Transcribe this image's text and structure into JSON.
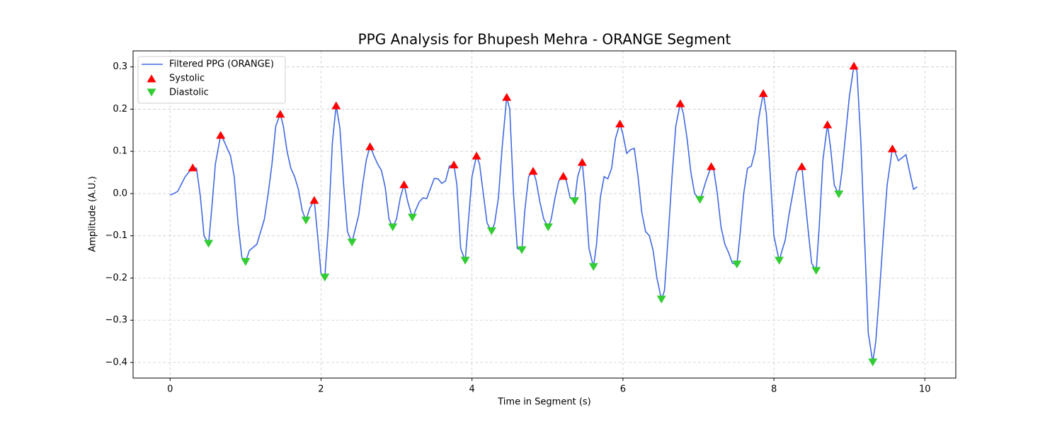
{
  "chart_data": {
    "type": "line",
    "title": "PPG Analysis for Bhupesh Mehra - ORANGE Segment",
    "xlabel": "Time in Segment (s)",
    "ylabel": "Amplitude (A.U.)",
    "xlim": [
      -0.49,
      10.41
    ],
    "ylim": [
      -0.437,
      0.338
    ],
    "xticks": [
      0,
      2,
      4,
      6,
      8,
      10
    ],
    "yticks": [
      {
        "value": -0.4,
        "label": "−0.4"
      },
      {
        "value": -0.3,
        "label": "−0.3"
      },
      {
        "value": -0.2,
        "label": "−0.2"
      },
      {
        "value": -0.1,
        "label": "−0.1"
      },
      {
        "value": 0,
        "label": "0.0"
      },
      0.1,
      0.2,
      0.3
    ],
    "grid": true,
    "legend": "upper left",
    "series": [
      {
        "name": "Filtered PPG (ORANGE)",
        "color": "#4169e1",
        "style": "line",
        "x": [
          0,
          0.05,
          0.1,
          0.2,
          0.3,
          0.35,
          0.4,
          0.45,
          0.51,
          0.55,
          0.6,
          0.67,
          0.7,
          0.75,
          0.8,
          0.85,
          0.9,
          0.95,
          1.0,
          1.05,
          1.15,
          1.25,
          1.3,
          1.35,
          1.4,
          1.46,
          1.5,
          1.55,
          1.6,
          1.65,
          1.7,
          1.75,
          1.8,
          1.85,
          1.91,
          1.95,
          2.0,
          2.05,
          2.1,
          2.15,
          2.2,
          2.25,
          2.3,
          2.35,
          2.41,
          2.5,
          2.55,
          2.6,
          2.65,
          2.7,
          2.75,
          2.8,
          2.85,
          2.9,
          2.95,
          3.0,
          3.05,
          3.1,
          3.15,
          3.21,
          3.3,
          3.35,
          3.4,
          3.5,
          3.55,
          3.6,
          3.65,
          3.7,
          3.76,
          3.8,
          3.85,
          3.91,
          3.95,
          4.0,
          4.06,
          4.1,
          4.15,
          4.2,
          4.26,
          4.3,
          4.35,
          4.4,
          4.46,
          4.5,
          4.55,
          4.6,
          4.66,
          4.7,
          4.75,
          4.81,
          4.85,
          4.9,
          4.95,
          5.01,
          5.05,
          5.1,
          5.15,
          5.21,
          5.25,
          5.3,
          5.36,
          5.4,
          5.46,
          5.5,
          5.55,
          5.61,
          5.65,
          5.7,
          5.75,
          5.8,
          5.85,
          5.9,
          5.96,
          6.0,
          6.05,
          6.1,
          6.15,
          6.2,
          6.25,
          6.3,
          6.35,
          6.4,
          6.45,
          6.51,
          6.55,
          6.6,
          6.65,
          6.7,
          6.76,
          6.8,
          6.85,
          6.9,
          6.95,
          7.02,
          7.05,
          7.1,
          7.17,
          7.2,
          7.25,
          7.3,
          7.35,
          7.4,
          7.45,
          7.51,
          7.55,
          7.6,
          7.65,
          7.7,
          7.75,
          7.8,
          7.86,
          7.9,
          7.95,
          8.0,
          8.07,
          8.1,
          8.15,
          8.2,
          8.25,
          8.3,
          8.37,
          8.4,
          8.45,
          8.5,
          8.56,
          8.6,
          8.65,
          8.71,
          8.75,
          8.8,
          8.86,
          8.9,
          8.95,
          9.0,
          9.06,
          9.1,
          9.15,
          9.2,
          9.25,
          9.31,
          9.35,
          9.4,
          9.45,
          9.5,
          9.57,
          9.6,
          9.65,
          9.7,
          9.75,
          9.8,
          9.85,
          9.9
        ],
        "values": [
          -0.003,
          0,
          0.005,
          0.04,
          0.062,
          0.06,
          -0.005,
          -0.1,
          -0.119,
          -0.04,
          0.07,
          0.139,
          0.13,
          0.11,
          0.09,
          0.04,
          -0.07,
          -0.15,
          -0.162,
          -0.135,
          -0.12,
          -0.06,
          0.0,
          0.07,
          0.16,
          0.189,
          0.16,
          0.1,
          0.06,
          0.04,
          0.01,
          -0.04,
          -0.064,
          -0.035,
          -0.015,
          -0.09,
          -0.19,
          -0.199,
          -0.07,
          0.12,
          0.209,
          0.155,
          0.02,
          -0.09,
          -0.116,
          -0.05,
          0.02,
          0.08,
          0.112,
          0.09,
          0.07,
          0.055,
          0.015,
          -0.06,
          -0.08,
          -0.06,
          -0.01,
          0.022,
          -0.02,
          -0.057,
          -0.02,
          -0.01,
          -0.012,
          0.036,
          0.035,
          0.024,
          0.03,
          0.065,
          0.069,
          0.02,
          -0.13,
          -0.159,
          -0.07,
          0.04,
          0.09,
          0.07,
          0.0,
          -0.07,
          -0.089,
          -0.07,
          -0.01,
          0.11,
          0.229,
          0.2,
          0.0,
          -0.13,
          -0.134,
          -0.04,
          0.04,
          0.054,
          0.03,
          -0.02,
          -0.06,
          -0.08,
          -0.06,
          -0.01,
          0.03,
          0.042,
          0.03,
          -0.01,
          -0.018,
          0.04,
          0.075,
          0.0,
          -0.13,
          -0.174,
          -0.12,
          -0.01,
          0.04,
          0.035,
          0.06,
          0.13,
          0.166,
          0.14,
          0.095,
          0.104,
          0.107,
          0.04,
          -0.045,
          -0.09,
          -0.1,
          -0.135,
          -0.2,
          -0.251,
          -0.23,
          -0.1,
          0.04,
          0.16,
          0.214,
          0.19,
          0.13,
          0.05,
          0.0,
          -0.015,
          0.0,
          0.03,
          0.065,
          0.06,
          0.0,
          -0.08,
          -0.12,
          -0.14,
          -0.165,
          -0.168,
          -0.1,
          0.0,
          0.06,
          0.065,
          0.1,
          0.18,
          0.238,
          0.19,
          0.05,
          -0.1,
          -0.159,
          -0.14,
          -0.11,
          -0.05,
          0.0,
          0.05,
          0.065,
          0.01,
          -0.08,
          -0.165,
          -0.183,
          -0.08,
          0.08,
          0.164,
          0.11,
          0.02,
          -0.002,
          0.05,
          0.14,
          0.23,
          0.303,
          0.29,
          0.13,
          -0.1,
          -0.33,
          -0.4,
          -0.35,
          -0.23,
          -0.1,
          0.02,
          0.107,
          0.1,
          0.078,
          0.085,
          0.092,
          0.05,
          0.01,
          0.016
        ]
      },
      {
        "name": "Systolic",
        "color": "#ff0000",
        "style": "scatter",
        "marker": "^",
        "x": [
          0.3,
          0.67,
          1.46,
          1.91,
          2.2,
          2.65,
          3.1,
          3.76,
          4.06,
          4.46,
          4.81,
          5.21,
          5.46,
          5.96,
          6.76,
          7.17,
          7.86,
          8.37,
          8.71,
          9.06,
          9.57
        ],
        "values": [
          0.062,
          0.139,
          0.189,
          -0.015,
          0.209,
          0.112,
          0.022,
          0.069,
          0.09,
          0.229,
          0.054,
          0.042,
          0.075,
          0.166,
          0.214,
          0.065,
          0.238,
          0.065,
          0.164,
          0.303,
          0.107
        ]
      },
      {
        "name": "Diastolic",
        "color": "#32cd32",
        "style": "scatter",
        "marker": "v",
        "x": [
          0.51,
          1.0,
          1.8,
          2.05,
          2.41,
          2.95,
          3.21,
          3.91,
          4.26,
          4.66,
          5.01,
          5.36,
          5.61,
          6.51,
          7.02,
          7.51,
          8.07,
          8.56,
          8.86,
          9.31
        ],
        "values": [
          -0.119,
          -0.162,
          -0.064,
          -0.199,
          -0.116,
          -0.08,
          -0.057,
          -0.159,
          -0.089,
          -0.134,
          -0.08,
          -0.018,
          -0.174,
          -0.251,
          -0.015,
          -0.168,
          -0.159,
          -0.183,
          -0.002,
          -0.4
        ]
      }
    ]
  }
}
